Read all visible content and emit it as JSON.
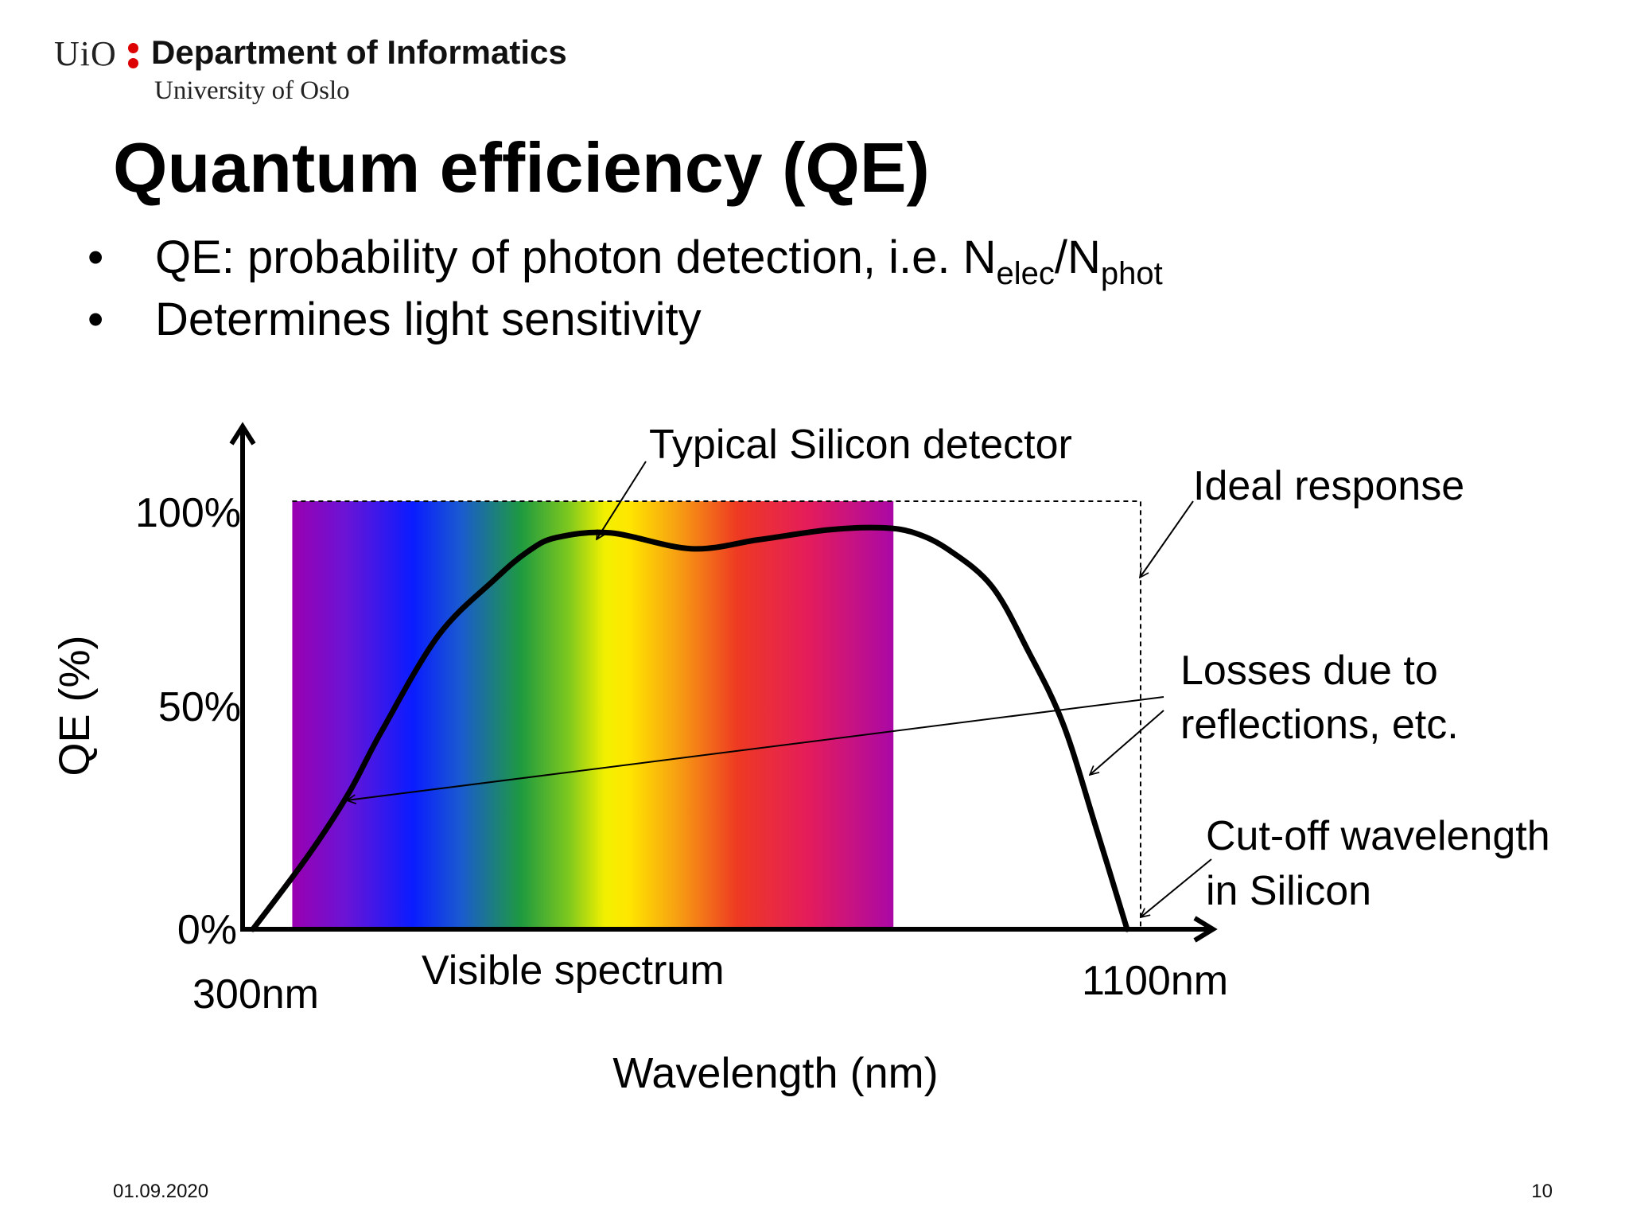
{
  "header": {
    "logo_text": "UiO",
    "department": "Department of Informatics",
    "university": "University of Oslo"
  },
  "title": "Quantum efficiency (QE)",
  "bullets": {
    "items": [
      {
        "text": "QE: probability of photon detection, i.e. N",
        "sub1": "elec",
        "mid": "/N",
        "sub2": "phot"
      },
      {
        "text": "Determines light sensitivity"
      }
    ],
    "bullet_char": "•"
  },
  "chart_data": {
    "type": "line",
    "title": "",
    "xlabel": "Wavelength (nm)",
    "ylabel": "QE (%)",
    "x_tick_labels": [
      "300nm",
      "1100nm"
    ],
    "y_tick_labels": [
      "0%",
      "50%",
      "100%"
    ],
    "xlim": [
      300,
      1100
    ],
    "ylim": [
      0,
      100
    ],
    "visible_spectrum": {
      "label": "Visible spectrum",
      "from_nm": 345,
      "to_nm": 880
    },
    "series": [
      {
        "name": "Typical Silicon detector",
        "x": [
          310,
          360,
          395,
          425,
          475,
          525,
          555,
          580,
          628,
          700,
          760,
          822,
          870,
          900,
          930,
          968,
          1000,
          1031,
          1060,
          1088
        ],
        "y": [
          0,
          17.5,
          31.7,
          46.5,
          68.6,
          81.7,
          88.3,
          91.5,
          92.6,
          88.9,
          91.0,
          93.3,
          93.8,
          92.5,
          88.5,
          80.0,
          65.0,
          48.0,
          24.0,
          0
        ]
      },
      {
        "name": "Ideal response",
        "x": [
          345,
          1100,
          1100
        ],
        "y": [
          100,
          100,
          0
        ]
      }
    ],
    "annotations": [
      {
        "text": "Typical Silicon detector",
        "target": "curve peak near 620nm"
      },
      {
        "text": "Ideal response",
        "target": "ideal cutoff line"
      },
      {
        "text": "Losses due to",
        "text2": "reflections, etc.",
        "target": "gap between curve and ideal response"
      },
      {
        "text": "Cut-off wavelength",
        "text2": "in Silicon",
        "target": "1100nm"
      }
    ],
    "colors": {
      "curve": "#000000",
      "axes": "#000000",
      "ideal": "#000000"
    }
  },
  "footer": {
    "date": "01.09.2020",
    "page": "10"
  }
}
